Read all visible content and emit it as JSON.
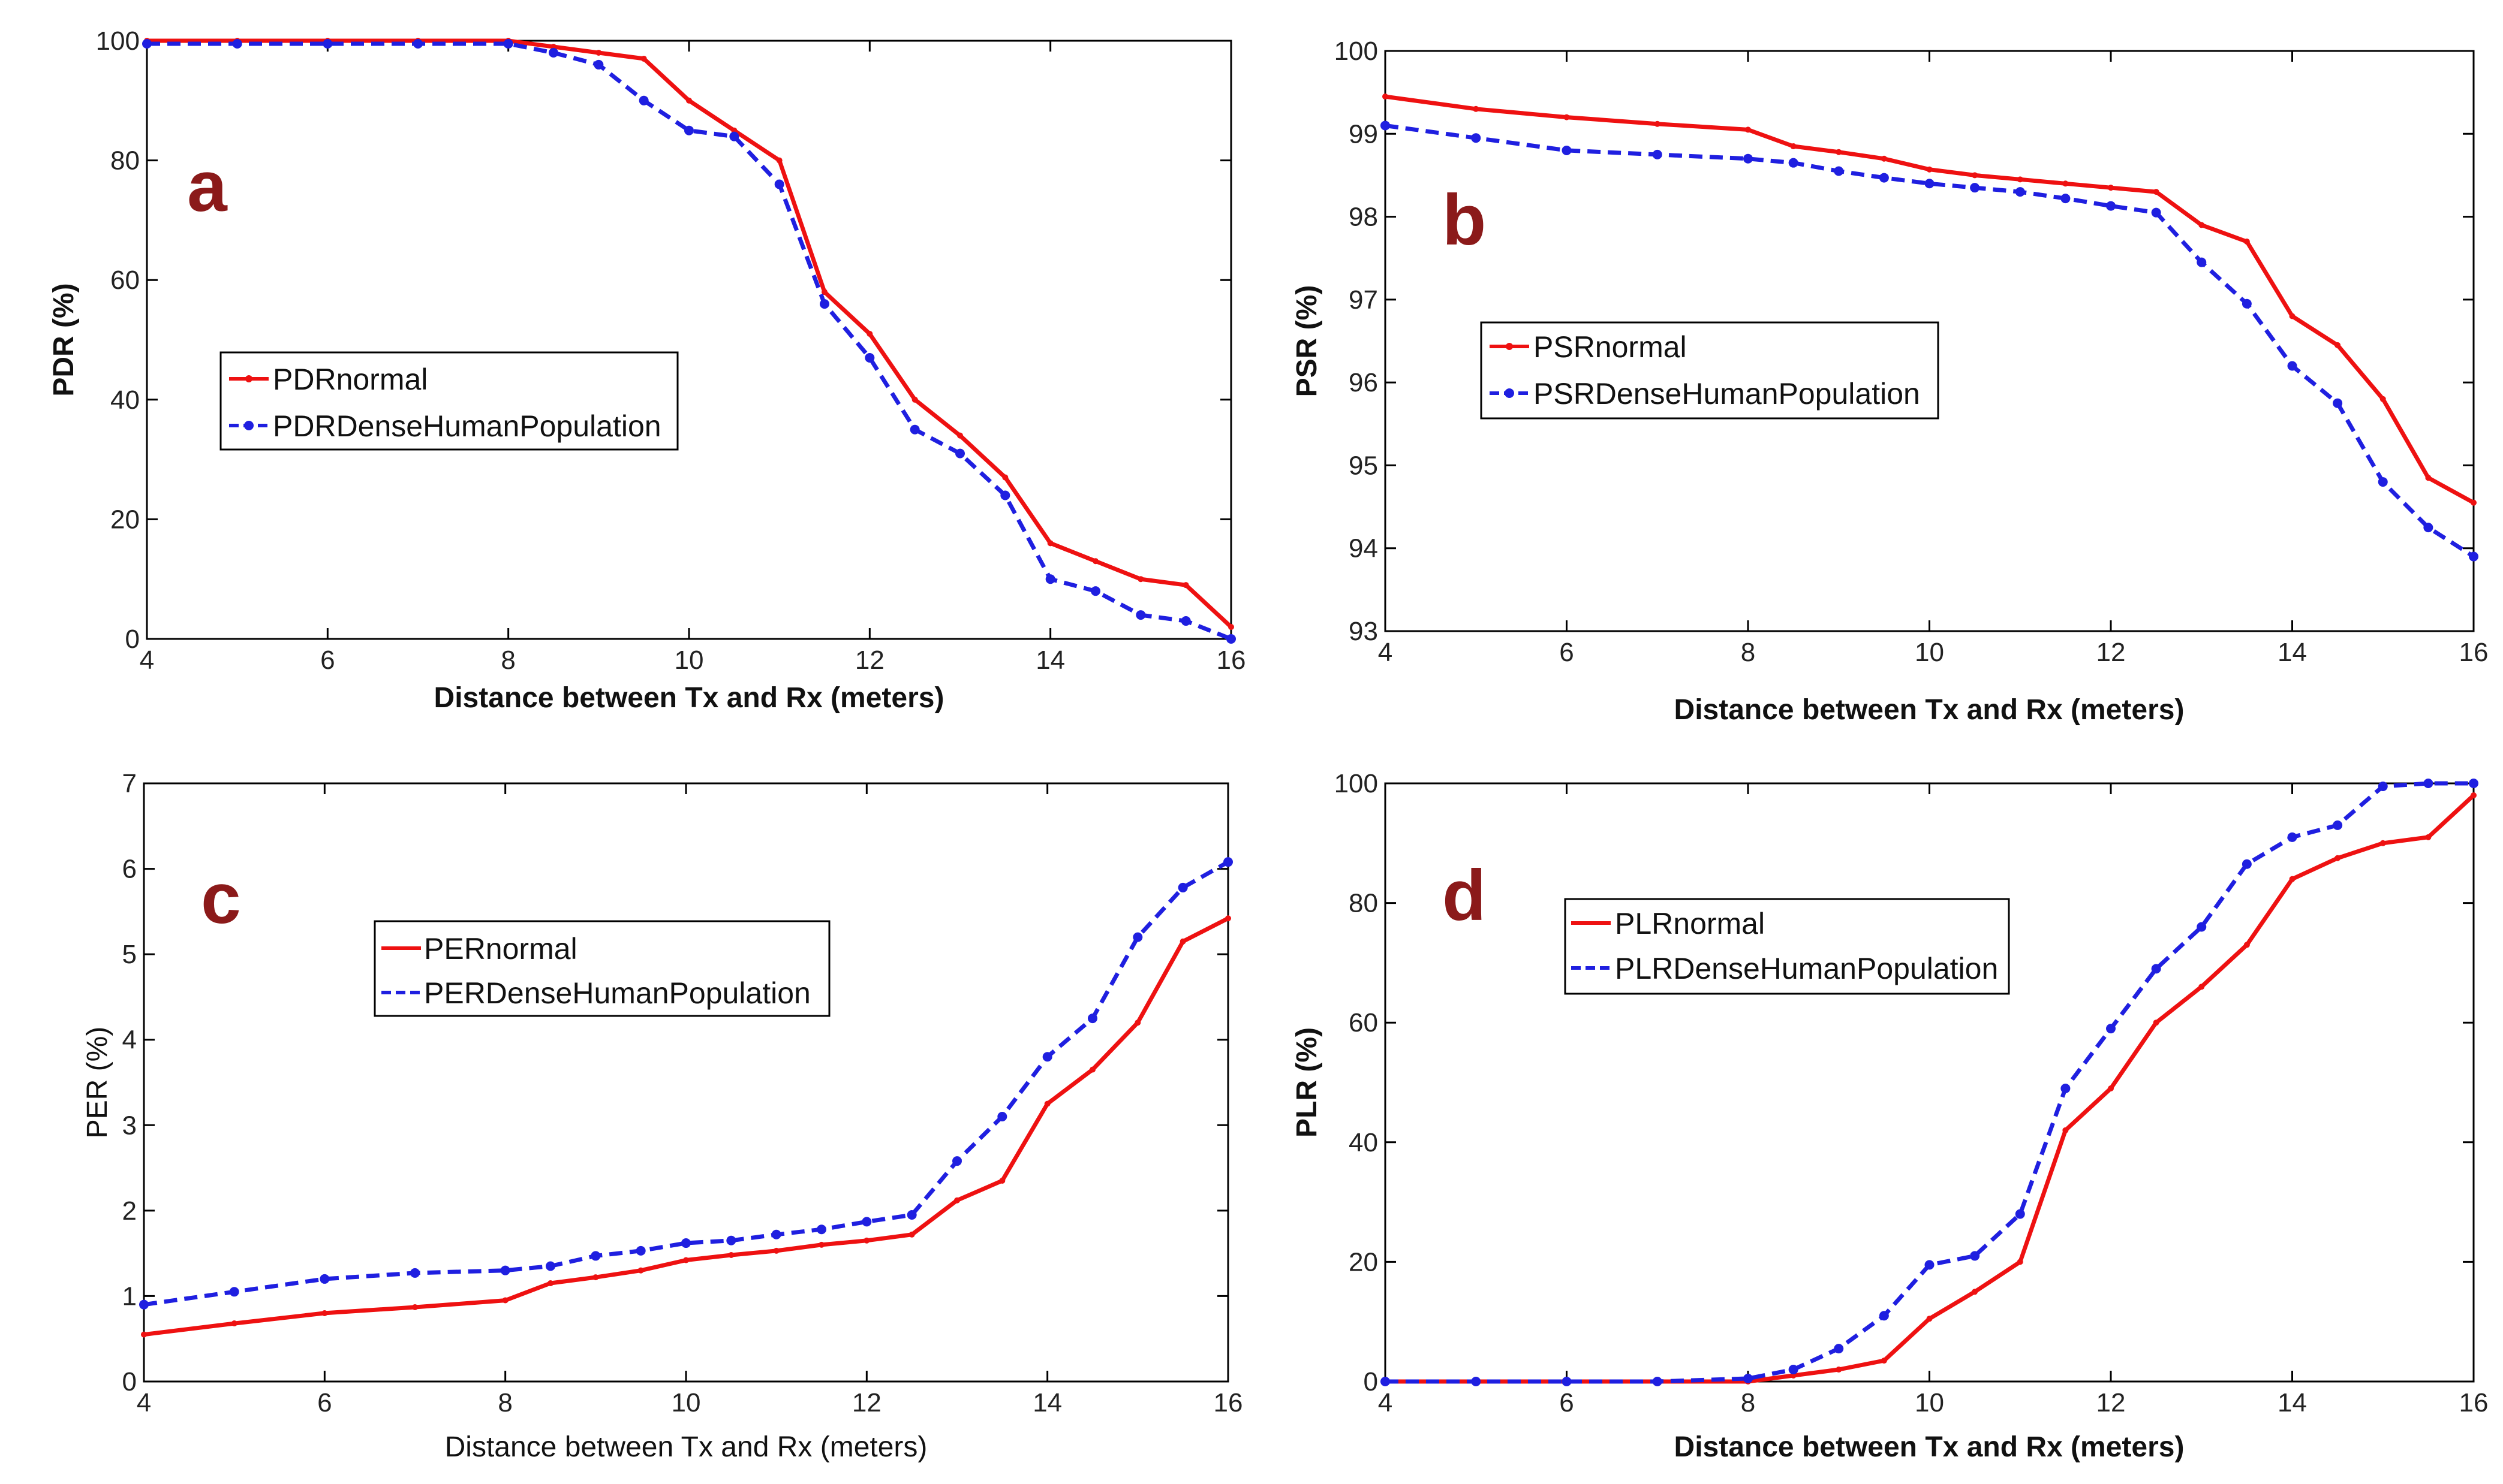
{
  "colors": {
    "normal": "#ee1111",
    "dense": "#1f1fe0",
    "letter": "#8b1a1a"
  },
  "chart_data": [
    {
      "type": "line",
      "panel_label": "a",
      "xlabel": "Distance between Tx and Rx (meters)",
      "ylabel": "PDR (%)",
      "xlim": [
        4,
        16
      ],
      "ylim": [
        0,
        100
      ],
      "xticks": [
        4,
        6,
        8,
        10,
        12,
        14,
        16
      ],
      "yticks": [
        0,
        20,
        40,
        60,
        80,
        100
      ],
      "xtick_labels": [
        "4",
        "6",
        "8",
        "10",
        "12",
        "14",
        "16"
      ],
      "ytick_labels": [
        "0",
        "20",
        "40",
        "60",
        "80",
        "100"
      ],
      "legend_position": "center-left",
      "series": [
        {
          "name": "PDRnormal",
          "style": "solid",
          "x": [
            4,
            5,
            6,
            7,
            8,
            8.5,
            9,
            9.5,
            10,
            10.5,
            11,
            11.5,
            12,
            12.5,
            13,
            13.5,
            14,
            14.5,
            15,
            15.5,
            16
          ],
          "y": [
            100,
            100,
            100,
            100,
            100,
            99,
            98,
            97,
            90,
            85,
            80,
            58,
            51,
            40,
            34,
            27,
            16,
            13,
            10,
            9,
            2
          ]
        },
        {
          "name": "PDRDenseHumanPopulation",
          "style": "dashed",
          "x": [
            4,
            5,
            6,
            7,
            8,
            8.5,
            9,
            9.5,
            10,
            10.5,
            11,
            11.5,
            12,
            12.5,
            13,
            13.5,
            14,
            14.5,
            15,
            15.5,
            16
          ],
          "y": [
            99.5,
            99.5,
            99.5,
            99.5,
            99.5,
            98,
            96,
            90,
            85,
            84,
            76,
            56,
            47,
            35,
            31,
            24,
            10,
            8,
            4,
            3,
            0
          ]
        }
      ]
    },
    {
      "type": "line",
      "panel_label": "b",
      "xlabel": "Distance between Tx and Rx (meters)",
      "ylabel": "PSR (%)",
      "xlim": [
        4,
        16
      ],
      "ylim": [
        93,
        100
      ],
      "xticks": [
        4,
        6,
        8,
        10,
        12,
        14,
        16
      ],
      "yticks": [
        93,
        94,
        95,
        96,
        97,
        98,
        99,
        100
      ],
      "xtick_labels": [
        "4",
        "6",
        "8",
        "10",
        "12",
        "14",
        "16"
      ],
      "ytick_labels": [
        "93",
        "94",
        "95",
        "96",
        "97",
        "98",
        "99",
        "100"
      ],
      "legend_position": "center-left",
      "series": [
        {
          "name": "PSRnormal",
          "style": "solid",
          "x": [
            4,
            5,
            6,
            7,
            8,
            8.5,
            9,
            9.5,
            10,
            10.5,
            11,
            11.5,
            12,
            12.5,
            13,
            13.5,
            14,
            14.5,
            15,
            15.5,
            16
          ],
          "y": [
            99.45,
            99.3,
            99.2,
            99.12,
            99.05,
            98.85,
            98.78,
            98.7,
            98.57,
            98.5,
            98.45,
            98.4,
            98.35,
            98.3,
            97.9,
            97.7,
            96.8,
            96.45,
            95.8,
            94.85,
            94.55
          ]
        },
        {
          "name": "PSRDenseHumanPopulation",
          "style": "dashed",
          "x": [
            4,
            5,
            6,
            7,
            8,
            8.5,
            9,
            9.5,
            10,
            10.5,
            11,
            11.5,
            12,
            12.5,
            13,
            13.5,
            14,
            14.5,
            15,
            15.5,
            16
          ],
          "y": [
            99.1,
            98.95,
            98.8,
            98.75,
            98.7,
            98.65,
            98.55,
            98.47,
            98.4,
            98.35,
            98.3,
            98.22,
            98.13,
            98.05,
            97.45,
            96.95,
            96.2,
            95.75,
            94.8,
            94.25,
            93.9
          ]
        }
      ]
    },
    {
      "type": "line",
      "panel_label": "c",
      "xlabel": "Distance between Tx and Rx (meters)",
      "ylabel": "PER (%)",
      "xlim": [
        4,
        16
      ],
      "ylim": [
        0,
        7
      ],
      "xticks": [
        4,
        6,
        8,
        10,
        12,
        14,
        16
      ],
      "yticks": [
        0,
        1,
        2,
        3,
        4,
        5,
        6,
        7
      ],
      "xtick_labels": [
        "4",
        "6",
        "8",
        "10",
        "12",
        "14",
        "16"
      ],
      "ytick_labels": [
        "0",
        "1",
        "2",
        "3",
        "4",
        "5",
        "6",
        "7"
      ],
      "legend_position": "top-center",
      "series": [
        {
          "name": "PERnormal",
          "style": "solid",
          "x": [
            4,
            5,
            6,
            7,
            8,
            8.5,
            9,
            9.5,
            10,
            10.5,
            11,
            11.5,
            12,
            12.5,
            13,
            13.5,
            14,
            14.5,
            15,
            15.5,
            16
          ],
          "y": [
            0.55,
            0.68,
            0.8,
            0.87,
            0.95,
            1.15,
            1.22,
            1.3,
            1.42,
            1.48,
            1.53,
            1.6,
            1.65,
            1.72,
            2.12,
            2.35,
            3.25,
            3.65,
            4.2,
            5.15,
            5.42
          ]
        },
        {
          "name": "PERDenseHumanPopulation",
          "style": "dashed",
          "x": [
            4,
            5,
            6,
            7,
            8,
            8.5,
            9,
            9.5,
            10,
            10.5,
            11,
            11.5,
            12,
            12.5,
            13,
            13.5,
            14,
            14.5,
            15,
            15.5,
            16
          ],
          "y": [
            0.9,
            1.05,
            1.2,
            1.27,
            1.3,
            1.35,
            1.47,
            1.53,
            1.62,
            1.65,
            1.72,
            1.78,
            1.87,
            1.95,
            2.58,
            3.1,
            3.8,
            4.25,
            5.2,
            5.78,
            6.08
          ]
        }
      ]
    },
    {
      "type": "line",
      "panel_label": "d",
      "xlabel": "Distance between Tx and Rx (meters)",
      "ylabel": "PLR (%)",
      "xlim": [
        4,
        16
      ],
      "ylim": [
        0,
        100
      ],
      "xticks": [
        4,
        6,
        8,
        10,
        12,
        14,
        16
      ],
      "yticks": [
        0,
        20,
        40,
        60,
        80,
        100
      ],
      "xtick_labels": [
        "4",
        "6",
        "8",
        "10",
        "12",
        "14",
        "16"
      ],
      "ytick_labels": [
        "0",
        "20",
        "40",
        "60",
        "80",
        "100"
      ],
      "legend_position": "top-center",
      "series": [
        {
          "name": "PLRnormal",
          "style": "solid",
          "x": [
            4,
            5,
            6,
            7,
            8,
            8.5,
            9,
            9.5,
            10,
            10.5,
            11,
            11.5,
            12,
            12.5,
            13,
            13.5,
            14,
            14.5,
            15,
            15.5,
            16
          ],
          "y": [
            0,
            0,
            0,
            0,
            0,
            1,
            2,
            3.5,
            10.5,
            15,
            20,
            42,
            49,
            60,
            66,
            73,
            84,
            87.5,
            90,
            91,
            98
          ]
        },
        {
          "name": "PLRDenseHumanPopulation",
          "style": "dashed",
          "x": [
            4,
            5,
            6,
            7,
            8,
            8.5,
            9,
            9.5,
            10,
            10.5,
            11,
            11.5,
            12,
            12.5,
            13,
            13.5,
            14,
            14.5,
            15,
            15.5,
            16
          ],
          "y": [
            0,
            0,
            0,
            0,
            0.5,
            2,
            5.5,
            11,
            19.5,
            21,
            28,
            49,
            59,
            69,
            76,
            86.5,
            91,
            93,
            99.5,
            100,
            100
          ]
        }
      ]
    }
  ]
}
